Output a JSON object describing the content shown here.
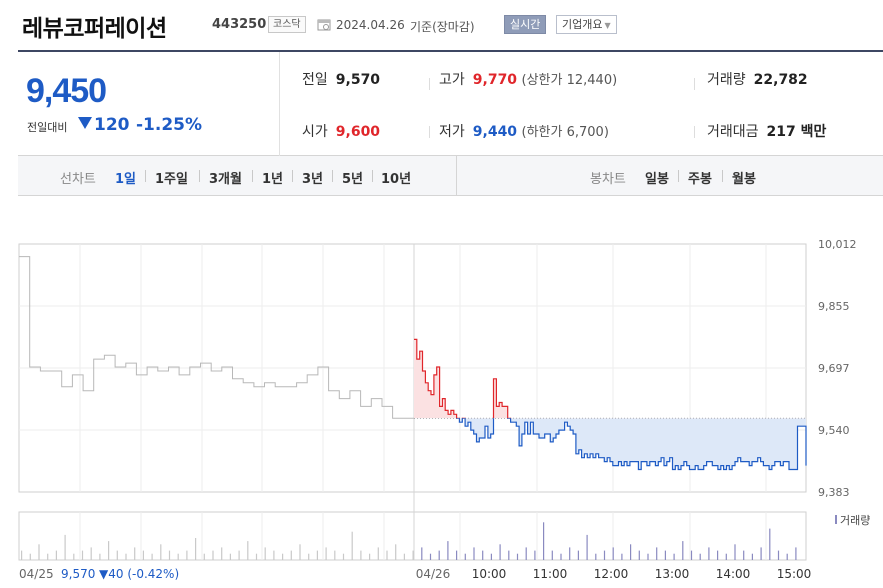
{
  "header": {
    "company": "레뷰코퍼레이션",
    "code": "443250",
    "market": "코스닥",
    "date": "2024.04.26",
    "basis": "기준(장마감)",
    "realtime_label": "실시간",
    "corp_info_label": "기업개요"
  },
  "summary": {
    "price": "9,450",
    "change_label": "전일대비",
    "change": "120",
    "change_direction": "down",
    "change_pct": "-1.25%",
    "prev_close_label": "전일",
    "prev_close": "9,570",
    "high_label": "고가",
    "high": "9,770",
    "upper_limit": "(상한가 12,440)",
    "volume_label": "거래량",
    "volume": "22,782",
    "open_label": "시가",
    "open": "9,600",
    "low_label": "저가",
    "low": "9,440",
    "lower_limit": "(하한가 6,700)",
    "turnover_label": "거래대금",
    "turnover": "217 백만"
  },
  "period_bar": {
    "line_chart_label": "선차트",
    "periods": [
      "1일",
      "1주일",
      "3개월",
      "1년",
      "3년",
      "5년",
      "10년"
    ],
    "selected_period": "1일",
    "candle_chart_label": "봉차트",
    "candles": [
      "일봉",
      "주봉",
      "월봉"
    ]
  },
  "colors": {
    "up": "#e0262b",
    "down": "#1e5bc5",
    "prev_day_line": "#b8b8b8",
    "area_up": "#fbe1e2",
    "area_down": "#dde8f8",
    "volume_bar": "#8a8ac0"
  },
  "chart_data": {
    "type": "line",
    "y_ticks": [
      "10,012",
      "9,855",
      "9,697",
      "9,540",
      "9,383"
    ],
    "ylim": [
      9383,
      10012
    ],
    "reference_price": 9570,
    "x_ticks": [
      "04/26",
      "10:00",
      "11:00",
      "12:00",
      "13:00",
      "14:00",
      "15:00"
    ],
    "volume_label": "거래량",
    "previous_day": {
      "date": "04/25",
      "close": "9,570",
      "change": "▼40 (-0.42%)",
      "y": [
        9980,
        9700,
        9690,
        9690,
        9650,
        9680,
        9640,
        9720,
        9730,
        9700,
        9710,
        9680,
        9700,
        9690,
        9700,
        9680,
        9700,
        9710,
        9690,
        9700,
        9670,
        9660,
        9650,
        9660,
        9650,
        9650,
        9660,
        9680,
        9700,
        9640,
        9620,
        9640,
        9600,
        9620,
        9600,
        9570,
        9570,
        9570
      ]
    },
    "today": {
      "y": [
        9770,
        9720,
        9740,
        9690,
        9660,
        9640,
        9630,
        9680,
        9700,
        9600,
        9620,
        9590,
        9580,
        9590,
        9580,
        9570,
        9560,
        9570,
        9550,
        9560,
        9540,
        9530,
        9510,
        9520,
        9520,
        9550,
        9520,
        9530,
        9670,
        9600,
        9610,
        9600,
        9600,
        9570,
        9560,
        9560,
        9550,
        9500,
        9530,
        9560,
        9530,
        9560,
        9530,
        9530,
        9520,
        9520,
        9530,
        9530,
        9510,
        9520,
        9530,
        9540,
        9540,
        9560,
        9550,
        9540,
        9530,
        9480,
        9490,
        9470,
        9480,
        9470,
        9480,
        9470,
        9480,
        9470,
        9470,
        9460,
        9470,
        9460,
        9450,
        9450,
        9460,
        9450,
        9460,
        9450,
        9460,
        9460,
        9460,
        9440,
        9460,
        9460,
        9450,
        9460,
        9460,
        9450,
        9460,
        9470,
        9450,
        9460,
        9470,
        9440,
        9450,
        9440,
        9450,
        9460,
        9450,
        9440,
        9440,
        9450,
        9440,
        9440,
        9450,
        9460,
        9460,
        9450,
        9450,
        9440,
        9450,
        9440,
        9450,
        9440,
        9450,
        9460,
        9470,
        9460,
        9460,
        9460,
        9450,
        9460,
        9460,
        9470,
        9460,
        9450,
        9450,
        9440,
        9450,
        9460,
        9460,
        9450,
        9460,
        9460,
        9440,
        9440,
        9440,
        9550,
        9550,
        9550,
        9450
      ]
    }
  }
}
